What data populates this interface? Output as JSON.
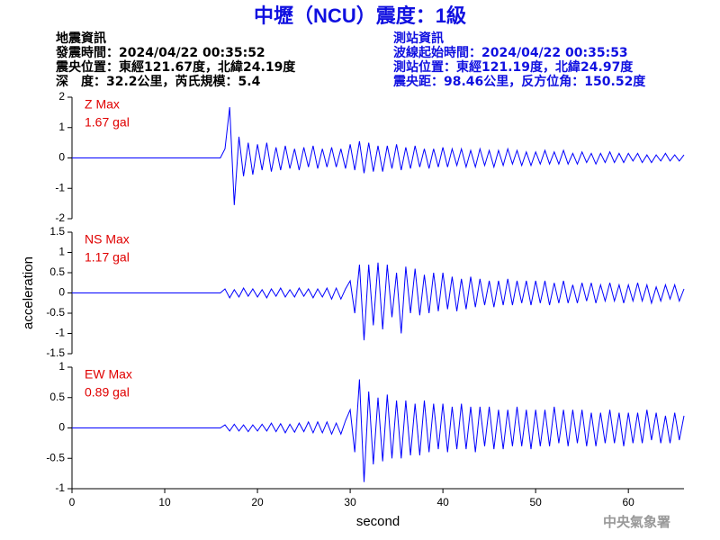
{
  "title": "中壢（NCU）震度：1級",
  "header": {
    "left": [
      "地震資訊",
      "發震時間：2024/04/22 00:35:52",
      "震央位置：東經121.67度，北緯24.19度",
      "深　度：32.2公里，芮氏規模：5.4"
    ],
    "right": [
      "測站資訊",
      "波線起始時間：2024/04/22 00:35:53",
      "測站位置：東經121.19度，北緯24.97度",
      "震央距：98.46公里，反方位角：150.52度"
    ]
  },
  "footer": "中央氣象署",
  "chart_data": [
    {
      "type": "line",
      "annotations": [
        "Z Max",
        "1.67 gal"
      ],
      "color": "#0000ff",
      "xlim": [
        0,
        66
      ],
      "ylim": [
        -2,
        2
      ],
      "yticks": [
        -2,
        -1,
        0,
        1,
        2
      ],
      "x": [
        0,
        16,
        16.5,
        17,
        17.5,
        18,
        18.5,
        19,
        19.5,
        20,
        20.5,
        21,
        21.5,
        22,
        22.5,
        23,
        23.5,
        24,
        24.5,
        25,
        25.5,
        26,
        26.5,
        27,
        27.5,
        28,
        28.5,
        29,
        29.5,
        30,
        30.5,
        31,
        31.5,
        32,
        32.5,
        33,
        33.5,
        34,
        34.5,
        35,
        35.5,
        36,
        36.5,
        37,
        37.5,
        38,
        38.5,
        39,
        39.5,
        40,
        40.5,
        41,
        41.5,
        42,
        42.5,
        43,
        43.5,
        44,
        44.5,
        45,
        45.5,
        46,
        46.5,
        47,
        47.5,
        48,
        48.5,
        49,
        49.5,
        50,
        50.5,
        51,
        51.5,
        52,
        52.5,
        53,
        53.5,
        54,
        54.5,
        55,
        55.5,
        56,
        56.5,
        57,
        57.5,
        58,
        58.5,
        59,
        59.5,
        60,
        60.5,
        61,
        61.5,
        62,
        62.5,
        63,
        63.5,
        64,
        64.5,
        65,
        65.5,
        66
      ],
      "values": [
        0,
        0,
        0.3,
        1.67,
        -1.55,
        0.7,
        -0.6,
        0.5,
        -0.55,
        0.45,
        -0.4,
        0.5,
        -0.45,
        0.35,
        -0.4,
        0.4,
        -0.35,
        0.3,
        -0.4,
        0.35,
        -0.3,
        0.4,
        -0.35,
        0.3,
        -0.3,
        0.35,
        -0.3,
        0.3,
        -0.35,
        0.45,
        -0.4,
        0.55,
        -0.5,
        0.5,
        -0.45,
        0.4,
        -0.45,
        0.4,
        -0.35,
        0.45,
        -0.4,
        0.35,
        -0.35,
        0.4,
        -0.3,
        0.3,
        -0.35,
        0.3,
        -0.3,
        0.35,
        -0.3,
        0.3,
        -0.25,
        0.3,
        -0.3,
        0.25,
        -0.3,
        0.3,
        -0.25,
        0.25,
        -0.3,
        0.25,
        -0.25,
        0.3,
        -0.2,
        0.25,
        -0.25,
        0.2,
        -0.25,
        0.2,
        -0.2,
        0.25,
        -0.2,
        0.2,
        -0.2,
        0.25,
        -0.2,
        0.15,
        -0.2,
        0.2,
        -0.15,
        0.15,
        -0.2,
        0.15,
        -0.15,
        0.2,
        -0.15,
        0.15,
        -0.15,
        0.15,
        -0.1,
        0.15,
        -0.15,
        0.1,
        -0.15,
        0.1,
        -0.1,
        0.15,
        -0.1,
        0.1,
        -0.1,
        0.1
      ]
    },
    {
      "type": "line",
      "annotations": [
        "NS Max",
        "1.17 gal"
      ],
      "ylabel": "acceleration",
      "color": "#0000ff",
      "xlim": [
        0,
        66
      ],
      "ylim": [
        -1.5,
        1.5
      ],
      "yticks": [
        -1.5,
        -1,
        -0.5,
        0,
        0.5,
        1,
        1.5
      ],
      "x": [
        0,
        16,
        16.5,
        17,
        17.5,
        18,
        18.5,
        19,
        19.5,
        20,
        20.5,
        21,
        21.5,
        22,
        22.5,
        23,
        23.5,
        24,
        24.5,
        25,
        25.5,
        26,
        26.5,
        27,
        27.5,
        28,
        28.5,
        29,
        29.5,
        30,
        30.5,
        31,
        31.5,
        32,
        32.5,
        33,
        33.5,
        34,
        34.5,
        35,
        35.5,
        36,
        36.5,
        37,
        37.5,
        38,
        38.5,
        39,
        39.5,
        40,
        40.5,
        41,
        41.5,
        42,
        42.5,
        43,
        43.5,
        44,
        44.5,
        45,
        45.5,
        46,
        46.5,
        47,
        47.5,
        48,
        48.5,
        49,
        49.5,
        50,
        50.5,
        51,
        51.5,
        52,
        52.5,
        53,
        53.5,
        54,
        54.5,
        55,
        55.5,
        56,
        56.5,
        57,
        57.5,
        58,
        58.5,
        59,
        59.5,
        60,
        60.5,
        61,
        61.5,
        62,
        62.5,
        63,
        63.5,
        64,
        64.5,
        65,
        65.5,
        66
      ],
      "values": [
        0,
        0,
        0.1,
        -0.12,
        0.08,
        -0.1,
        0.12,
        -0.08,
        0.1,
        -0.1,
        0.08,
        -0.12,
        0.1,
        -0.08,
        0.12,
        -0.1,
        0.08,
        -0.1,
        0.12,
        -0.08,
        0.1,
        -0.12,
        0.1,
        -0.1,
        0.12,
        -0.15,
        0.12,
        -0.15,
        0.1,
        0.3,
        -0.5,
        0.7,
        -1.17,
        0.7,
        -0.8,
        0.75,
        -0.9,
        0.7,
        -0.6,
        0.5,
        -1.0,
        0.65,
        -0.5,
        0.6,
        -0.55,
        0.45,
        -0.5,
        0.5,
        -0.45,
        0.5,
        -0.4,
        0.4,
        -0.45,
        0.35,
        -0.4,
        0.4,
        -0.35,
        0.35,
        -0.3,
        0.3,
        -0.35,
        0.3,
        -0.3,
        0.35,
        -0.3,
        0.3,
        -0.25,
        0.3,
        -0.3,
        0.3,
        -0.25,
        0.3,
        -0.3,
        0.25,
        -0.25,
        0.3,
        -0.25,
        0.2,
        -0.25,
        0.25,
        -0.2,
        0.25,
        -0.25,
        0.2,
        -0.2,
        0.25,
        -0.2,
        0.2,
        -0.25,
        0.2,
        -0.2,
        0.25,
        -0.2,
        0.2,
        -0.25,
        0.15,
        -0.2,
        0.2,
        -0.15,
        0.2,
        -0.2,
        0.1
      ]
    },
    {
      "type": "line",
      "annotations": [
        "EW Max",
        "0.89 gal"
      ],
      "xlabel": "second",
      "color": "#0000ff",
      "xlim": [
        0,
        66
      ],
      "xticks": [
        0,
        10,
        20,
        30,
        40,
        50,
        60
      ],
      "ylim": [
        -1,
        1
      ],
      "yticks": [
        -1,
        -0.5,
        0,
        0.5,
        1
      ],
      "x": [
        0,
        16,
        16.5,
        17,
        17.5,
        18,
        18.5,
        19,
        19.5,
        20,
        20.5,
        21,
        21.5,
        22,
        22.5,
        23,
        23.5,
        24,
        24.5,
        25,
        25.5,
        26,
        26.5,
        27,
        27.5,
        28,
        28.5,
        29,
        29.5,
        30,
        30.5,
        31,
        31.5,
        32,
        32.5,
        33,
        33.5,
        34,
        34.5,
        35,
        35.5,
        36,
        36.5,
        37,
        37.5,
        38,
        38.5,
        39,
        39.5,
        40,
        40.5,
        41,
        41.5,
        42,
        42.5,
        43,
        43.5,
        44,
        44.5,
        45,
        45.5,
        46,
        46.5,
        47,
        47.5,
        48,
        48.5,
        49,
        49.5,
        50,
        50.5,
        51,
        51.5,
        52,
        52.5,
        53,
        53.5,
        54,
        54.5,
        55,
        55.5,
        56,
        56.5,
        57,
        57.5,
        58,
        58.5,
        59,
        59.5,
        60,
        60.5,
        61,
        61.5,
        62,
        62.5,
        63,
        63.5,
        64,
        64.5,
        65,
        65.5,
        66
      ],
      "values": [
        0,
        0,
        0.05,
        -0.05,
        0.06,
        -0.05,
        0.05,
        -0.06,
        0.05,
        -0.05,
        0.06,
        -0.05,
        0.08,
        -0.06,
        0.07,
        -0.08,
        0.06,
        -0.07,
        0.08,
        -0.06,
        0.1,
        -0.08,
        0.1,
        -0.08,
        0.1,
        -0.1,
        0.08,
        -0.1,
        0.12,
        0.3,
        -0.4,
        0.8,
        -0.89,
        0.6,
        -0.6,
        0.5,
        -0.55,
        0.55,
        -0.5,
        0.45,
        -0.5,
        0.45,
        -0.45,
        0.4,
        -0.45,
        0.45,
        -0.4,
        0.4,
        -0.35,
        0.4,
        -0.4,
        0.35,
        -0.35,
        0.4,
        -0.35,
        0.35,
        -0.4,
        0.35,
        -0.3,
        0.35,
        -0.35,
        0.3,
        -0.35,
        0.3,
        -0.3,
        0.35,
        -0.3,
        0.3,
        -0.35,
        0.3,
        -0.3,
        0.3,
        -0.3,
        0.35,
        -0.25,
        0.3,
        -0.3,
        0.3,
        -0.25,
        0.3,
        -0.3,
        0.25,
        -0.3,
        0.25,
        -0.25,
        0.3,
        -0.25,
        0.25,
        -0.3,
        0.25,
        -0.25,
        0.25,
        -0.25,
        0.3,
        -0.2,
        0.25,
        -0.25,
        0.2,
        -0.25,
        0.25,
        -0.2,
        0.2
      ]
    }
  ]
}
